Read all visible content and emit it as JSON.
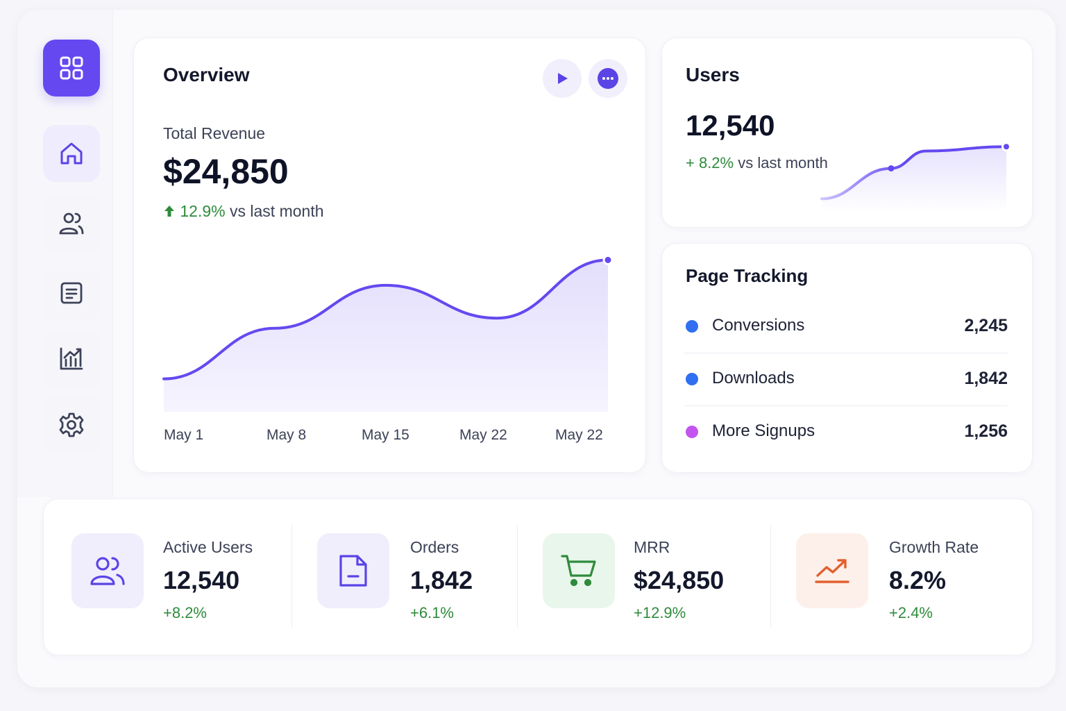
{
  "sidebar": {
    "items": [
      {
        "name": "dashboard-grid",
        "icon": "grid-icon"
      },
      {
        "name": "home",
        "icon": "home-icon"
      },
      {
        "name": "users",
        "icon": "users-icon"
      },
      {
        "name": "documents",
        "icon": "document-list-icon"
      },
      {
        "name": "analytics",
        "icon": "bar-chart-icon"
      },
      {
        "name": "settings",
        "icon": "gear-icon"
      }
    ]
  },
  "overview": {
    "title": "Overview",
    "revenue_label": "Total Revenue",
    "revenue_value": "$24,850",
    "change": "12.9%",
    "change_suffix": "vs last month",
    "accent": "#6548f0"
  },
  "users": {
    "title": "Users",
    "value": "12,540",
    "change": "+ 8.2%",
    "change_suffix": "vs last month"
  },
  "page_tracking": {
    "title": "Page Tracking",
    "rows": [
      {
        "label": "Conversions",
        "value": "2,245",
        "color": "#2f6ff0"
      },
      {
        "label": "Downloads",
        "value": "1,842",
        "color": "#2f6ff0"
      },
      {
        "label": "More Signups",
        "value": "1,256",
        "color": "#c355ee"
      }
    ]
  },
  "stats": [
    {
      "label": "Active Users",
      "value": "12,540",
      "change": "+8.2%",
      "icon": "users-icon"
    },
    {
      "label": "Orders",
      "value": "1,842",
      "change": "+6.1%",
      "icon": "file-icon"
    },
    {
      "label": "MRR",
      "value": "$24,850",
      "change": "+12.9%",
      "icon": "cart-icon"
    },
    {
      "label": "Growth Rate",
      "value": "8.2%",
      "change": "+2.4%",
      "icon": "trend-up-icon"
    }
  ],
  "chart_data": [
    {
      "type": "area",
      "categories": [
        "May 1",
        "May 8",
        "May 15",
        "May 22",
        "May 22"
      ],
      "values": [
        13,
        33,
        50,
        37,
        60
      ],
      "ylim": [
        0,
        70
      ],
      "grid": false,
      "color": "#6548f0"
    },
    {
      "type": "area",
      "values": [
        3,
        10,
        14,
        15
      ],
      "ylim": [
        0,
        16
      ],
      "grid": false,
      "color": "#6548f0"
    }
  ]
}
